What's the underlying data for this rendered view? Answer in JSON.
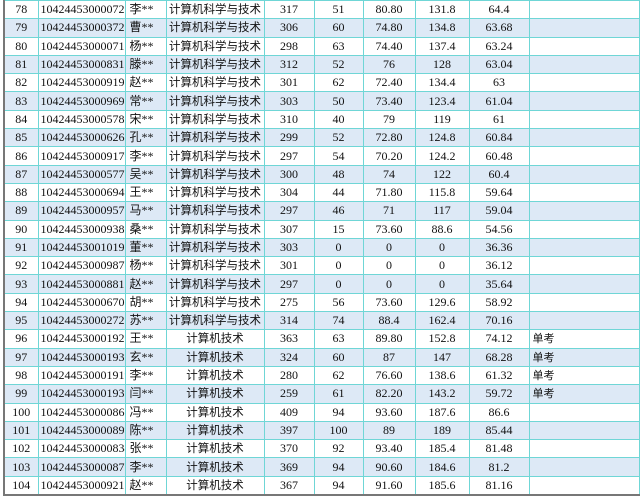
{
  "rows": [
    [
      "78",
      "104244530000727",
      "李**",
      "计算机科学与技术",
      "317",
      "51",
      "80.80",
      "131.8",
      "64.4",
      ""
    ],
    [
      "79",
      "104244530003725",
      "曹**",
      "计算机科学与技术",
      "306",
      "60",
      "74.80",
      "134.8",
      "63.68",
      ""
    ],
    [
      "80",
      "104244530000715",
      "杨**",
      "计算机科学与技术",
      "298",
      "63",
      "74.40",
      "137.4",
      "63.24",
      ""
    ],
    [
      "81",
      "104244530008318",
      "滕**",
      "计算机科学与技术",
      "312",
      "52",
      "76",
      "128",
      "63.04",
      ""
    ],
    [
      "82",
      "104244530009196",
      "赵**",
      "计算机科学与技术",
      "301",
      "62",
      "72.40",
      "134.4",
      "63",
      ""
    ],
    [
      "83",
      "104244530009698",
      "常**",
      "计算机科学与技术",
      "303",
      "50",
      "73.40",
      "123.4",
      "61.04",
      ""
    ],
    [
      "84",
      "104244530005788",
      "宋**",
      "计算机科学与技术",
      "310",
      "40",
      "79",
      "119",
      "61",
      ""
    ],
    [
      "85",
      "104244530006261",
      "孔**",
      "计算机科学与技术",
      "299",
      "52",
      "72.80",
      "124.8",
      "60.84",
      ""
    ],
    [
      "86",
      "104244530009179",
      "李**",
      "计算机科学与技术",
      "297",
      "54",
      "70.20",
      "124.2",
      "60.48",
      ""
    ],
    [
      "87",
      "104244530005775",
      "吴**",
      "计算机科学与技术",
      "300",
      "48",
      "74",
      "122",
      "60.4",
      ""
    ],
    [
      "88",
      "104244530006949",
      "王**",
      "计算机科学与技术",
      "304",
      "44",
      "71.80",
      "115.8",
      "59.64",
      ""
    ],
    [
      "89",
      "104244530009573",
      "马**",
      "计算机科学与技术",
      "297",
      "46",
      "71",
      "117",
      "59.04",
      ""
    ],
    [
      "90",
      "104244530009388",
      "桑**",
      "计算机科学与技术",
      "307",
      "15",
      "73.60",
      "88.6",
      "54.56",
      ""
    ],
    [
      "91",
      "104244530010190",
      "董**",
      "计算机科学与技术",
      "303",
      "0",
      "0",
      "0",
      "36.36",
      ""
    ],
    [
      "92",
      "104244530009878",
      "杨**",
      "计算机科学与技术",
      "301",
      "0",
      "0",
      "0",
      "36.12",
      ""
    ],
    [
      "93",
      "104244530008816",
      "赵**",
      "计算机科学与技术",
      "297",
      "0",
      "0",
      "0",
      "35.64",
      ""
    ],
    [
      "94",
      "104244530006700",
      "胡**",
      "计算机科学与技术",
      "275",
      "56",
      "73.60",
      "129.6",
      "58.92",
      ""
    ],
    [
      "95",
      "104244530002722",
      "苏**",
      "计算机科学与技术",
      "314",
      "74",
      "88.4",
      "162.4",
      "70.16",
      ""
    ],
    [
      "96",
      "104244530001922",
      "王**",
      "计算机技术",
      "363",
      "63",
      "89.80",
      "152.8",
      "74.12",
      "单考"
    ],
    [
      "97",
      "104244530001930",
      "玄**",
      "计算机技术",
      "324",
      "60",
      "87",
      "147",
      "68.28",
      "单考"
    ],
    [
      "98",
      "104244530001919",
      "李**",
      "计算机技术",
      "280",
      "62",
      "76.60",
      "138.6",
      "61.32",
      "单考"
    ],
    [
      "99",
      "104244530001931",
      "闫**",
      "计算机技术",
      "259",
      "61",
      "82.20",
      "143.2",
      "59.72",
      "单考"
    ],
    [
      "100",
      "104244530000868",
      "冯**",
      "计算机技术",
      "409",
      "94",
      "93.60",
      "187.6",
      "86.6",
      ""
    ],
    [
      "101",
      "104244530000899",
      "陈**",
      "计算机技术",
      "397",
      "100",
      "89",
      "189",
      "85.44",
      ""
    ],
    [
      "102",
      "104244530000834",
      "张**",
      "计算机技术",
      "370",
      "92",
      "93.40",
      "185.4",
      "81.48",
      ""
    ],
    [
      "103",
      "104244530000872",
      "李**",
      "计算机技术",
      "369",
      "94",
      "90.60",
      "184.6",
      "81.2",
      ""
    ],
    [
      "104",
      "104244530009213",
      "赵**",
      "计算机技术",
      "367",
      "94",
      "91.60",
      "185.6",
      "81.16",
      ""
    ]
  ],
  "colors": {
    "border": "#6fd6d6",
    "alt_row": "#dde9f6"
  }
}
